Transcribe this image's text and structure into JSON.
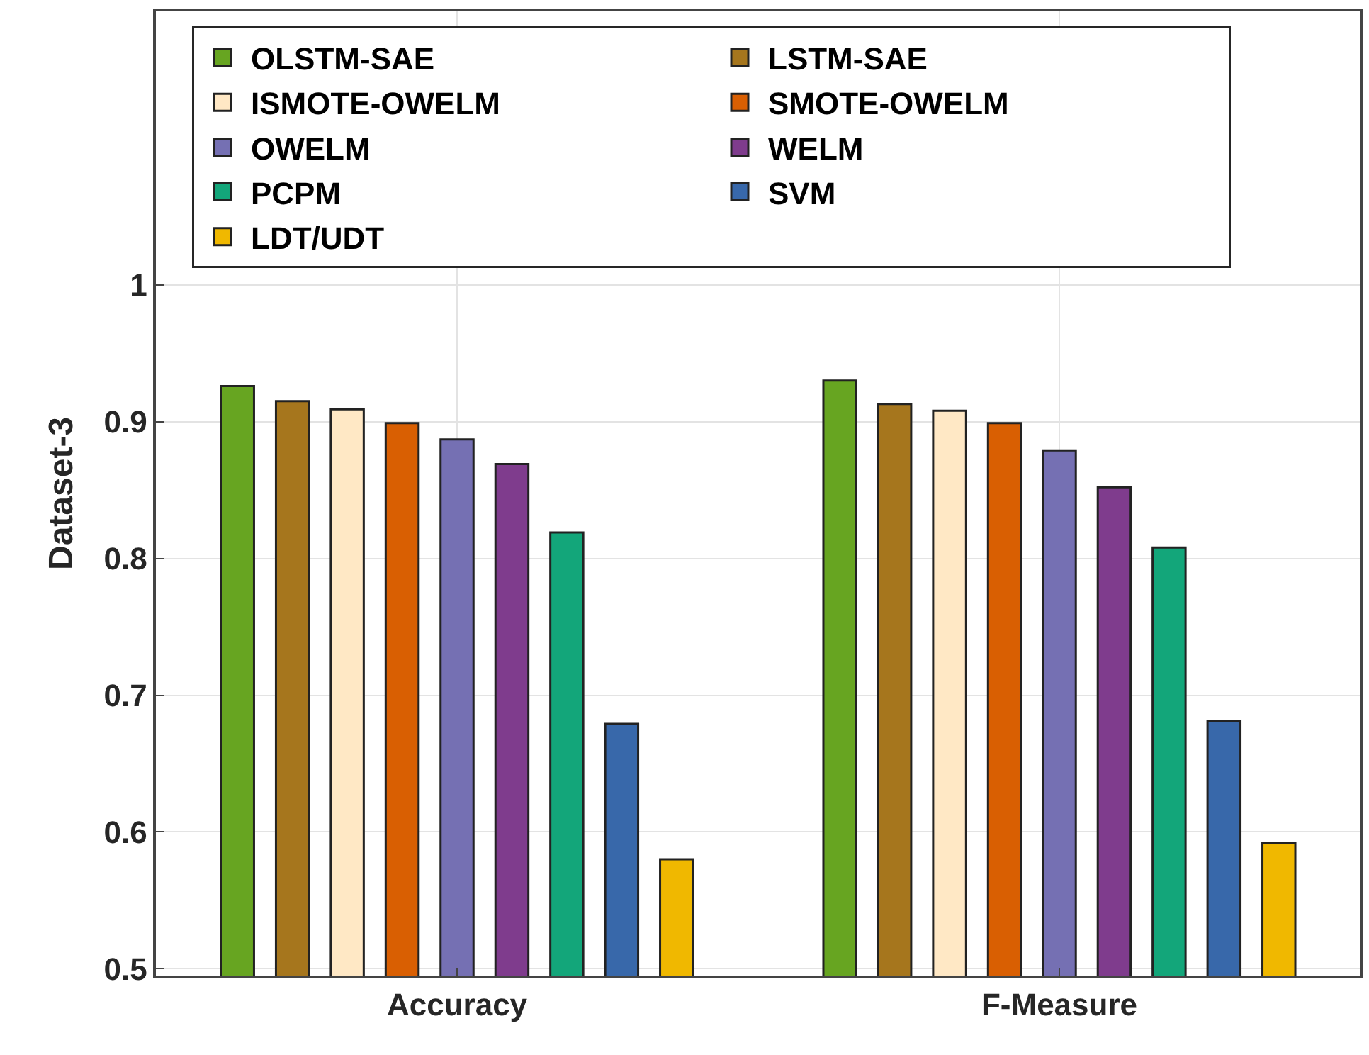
{
  "chart_data": {
    "type": "bar",
    "ylabel": "Dataset-3",
    "categories": [
      "Accuracy",
      "F-Measure"
    ],
    "series": [
      {
        "name": "OLSTM-SAE",
        "color": "#67a521",
        "values": [
          0.926,
          0.93
        ]
      },
      {
        "name": "LSTM-SAE",
        "color": "#a6761d",
        "values": [
          0.915,
          0.913
        ]
      },
      {
        "name": "ISMOTE-OWELM",
        "color": "#ffe8c5",
        "values": [
          0.909,
          0.908
        ]
      },
      {
        "name": "SMOTE-OWELM",
        "color": "#d95f02",
        "values": [
          0.899,
          0.899
        ]
      },
      {
        "name": "OWELM",
        "color": "#7570b3",
        "values": [
          0.887,
          0.879
        ]
      },
      {
        "name": "WELM",
        "color": "#7f3c8d",
        "values": [
          0.869,
          0.852
        ]
      },
      {
        "name": "PCPM",
        "color": "#13a67a",
        "values": [
          0.819,
          0.808
        ]
      },
      {
        "name": "SVM",
        "color": "#3868aa",
        "values": [
          0.679,
          0.681
        ]
      },
      {
        "name": "LDT/UDT",
        "color": "#f0b800",
        "values": [
          0.58,
          0.592
        ]
      }
    ],
    "ylim": [
      0.495,
      1.2
    ],
    "yticks": [
      0.5,
      0.6,
      0.7,
      0.8,
      0.9,
      1
    ],
    "grid": true,
    "legend": "top left"
  }
}
